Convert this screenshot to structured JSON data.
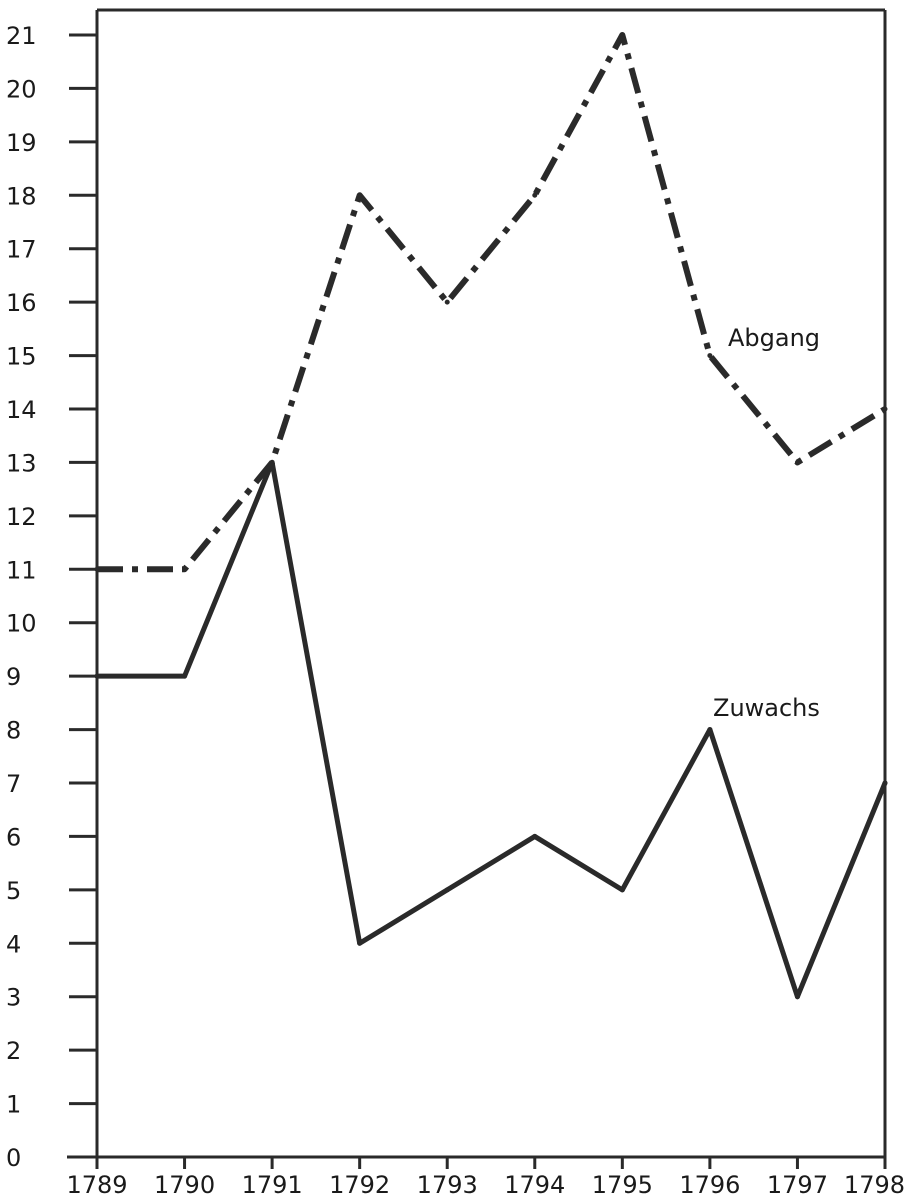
{
  "chart_data": {
    "type": "line",
    "title": "",
    "xlabel": "",
    "ylabel": "",
    "x": [
      1789,
      1790,
      1791,
      1792,
      1793,
      1794,
      1795,
      1796,
      1797,
      1798
    ],
    "x_tick_labels": [
      "1789",
      "1790",
      "1791",
      "1792",
      "1793",
      "1794",
      "1795",
      "1796",
      "1797",
      "1798"
    ],
    "y_ticks": [
      0,
      1,
      2,
      3,
      4,
      5,
      6,
      7,
      8,
      9,
      10,
      11,
      12,
      13,
      14,
      15,
      16,
      17,
      18,
      19,
      20,
      21
    ],
    "y_tick_labels": [
      "0",
      "1",
      "2",
      "3",
      "4",
      "5",
      "6",
      "7",
      "8",
      "9",
      "10",
      "11",
      "12",
      "13",
      "14",
      "15",
      "16",
      "17",
      "18",
      "19",
      "20",
      "21"
    ],
    "ylim": [
      0,
      21
    ],
    "xlim": [
      1789,
      1798
    ],
    "grid": false,
    "series": [
      {
        "name": "Zuwachs",
        "style": "solid",
        "color": "#2a2a2a",
        "values": [
          9,
          9,
          13,
          4,
          5,
          6,
          5,
          8,
          3,
          7
        ]
      },
      {
        "name": "Abgang",
        "style": "dash-dot",
        "color": "#2a2a2a",
        "values": [
          11,
          11,
          13,
          18,
          16,
          18,
          21,
          15,
          13,
          14
        ]
      }
    ]
  }
}
